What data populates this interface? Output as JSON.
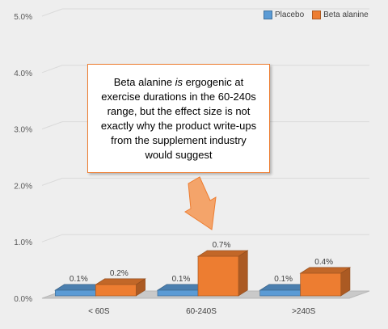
{
  "colors": {
    "placebo": "#5b9bd5",
    "beta_alanine": "#ed7d31",
    "background": "#eeeeee"
  },
  "annotation": {
    "before": "Beta alanine ",
    "emphasis": "is",
    "after": " ergogenic at exercise durations in the 60-240s range, but the effect size is not exactly why the product write-ups from the supplement industry would suggest"
  },
  "chart_data": {
    "type": "bar",
    "categories": [
      "< 60S",
      "60-240S",
      ">240S"
    ],
    "series": [
      {
        "name": "Placebo",
        "values": [
          0.1,
          0.1,
          0.1
        ],
        "labels": [
          "0.1%",
          "0.1%",
          "0.1%"
        ],
        "color": "#5b9bd5"
      },
      {
        "name": "Beta alanine",
        "values": [
          0.2,
          0.7,
          0.4
        ],
        "labels": [
          "0.2%",
          "0.7%",
          "0.4%"
        ],
        "color": "#ed7d31"
      }
    ],
    "ylim": [
      0,
      5
    ],
    "yticks": [
      "0.0%",
      "1.0%",
      "2.0%",
      "3.0%",
      "4.0%",
      "5.0%"
    ],
    "legend": "top-right",
    "grid": true,
    "style": "3d"
  }
}
